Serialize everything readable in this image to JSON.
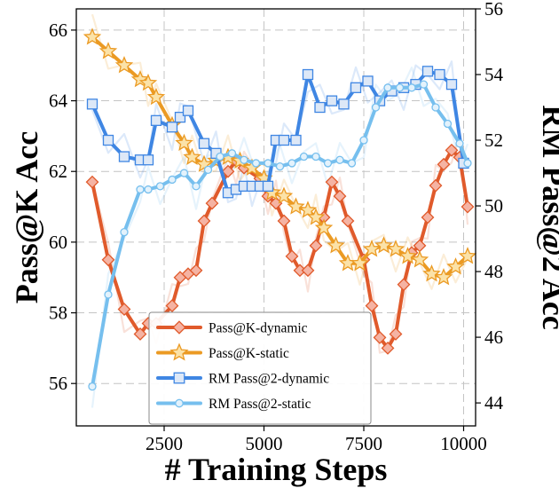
{
  "chart_data": {
    "type": "line",
    "xlabel": "# Training Steps",
    "ylabel_left": "Pass@K Acc",
    "ylabel_right": "RM Pass@2 Acc",
    "xlim": [
      300,
      10300
    ],
    "ylim_left": [
      54.8,
      66.6
    ],
    "ylim_right": [
      43.3,
      56.0
    ],
    "x_ticks": [
      2500,
      5000,
      7500,
      10000
    ],
    "y_ticks_left": [
      56,
      58,
      60,
      62,
      64,
      66
    ],
    "y_ticks_right": [
      44,
      46,
      48,
      50,
      52,
      54,
      56
    ],
    "grid": true,
    "legend_position": "lower-center",
    "series": [
      {
        "name": "Pass@K-dynamic",
        "axis": "left",
        "color": "#e05a2b",
        "marker": "diamond",
        "marker_fill": "#f5b3a3",
        "x": [
          700,
          1100,
          1500,
          1900,
          2100,
          2300,
          2700,
          2900,
          3100,
          3300,
          3500,
          3700,
          4100,
          4300,
          4500,
          4900,
          5100,
          5300,
          5500,
          5700,
          5900,
          6100,
          6300,
          6500,
          6700,
          6900,
          7100,
          7500,
          7700,
          7900,
          8100,
          8300,
          8500,
          8700,
          8900,
          9100,
          9300,
          9500,
          9700,
          9900,
          10100
        ],
        "values": [
          61.7,
          59.5,
          58.1,
          57.4,
          57.7,
          57.7,
          58.2,
          59.0,
          59.1,
          59.2,
          60.6,
          61.1,
          62.0,
          62.3,
          62.1,
          61.8,
          61.3,
          61.1,
          60.6,
          59.6,
          59.2,
          59.2,
          59.9,
          60.7,
          61.7,
          61.3,
          60.6,
          59.5,
          58.2,
          57.3,
          57.0,
          57.4,
          58.8,
          59.7,
          59.9,
          60.7,
          61.6,
          62.2,
          62.6,
          62.4,
          61.0
        ]
      },
      {
        "name": "Pass@K-static",
        "axis": "left",
        "color": "#eb9a23",
        "marker": "star",
        "marker_fill": "#fbe2a8",
        "x": [
          700,
          1100,
          1500,
          1900,
          2100,
          2300,
          2700,
          3000,
          3200,
          3500,
          3800,
          4100,
          4400,
          4700,
          5000,
          5200,
          5500,
          5800,
          6100,
          6300,
          6500,
          6800,
          7100,
          7400,
          7700,
          8000,
          8300,
          8600,
          8900,
          9200,
          9500,
          9800,
          10100
        ],
        "values": [
          65.8,
          65.4,
          65.0,
          64.6,
          64.5,
          64.1,
          63.3,
          62.8,
          62.4,
          62.2,
          62.3,
          62.4,
          62.3,
          62.1,
          61.8,
          61.4,
          61.3,
          61.0,
          60.9,
          60.7,
          60.4,
          59.9,
          59.4,
          59.4,
          59.8,
          59.9,
          59.8,
          59.6,
          59.5,
          59.1,
          59.0,
          59.3,
          59.6
        ]
      },
      {
        "name": "RM Pass@2-dynamic",
        "axis": "right",
        "color": "#3f86e3",
        "marker": "square",
        "marker_fill": "#dde8f7",
        "x": [
          700,
          1100,
          1500,
          1900,
          2100,
          2300,
          2700,
          2900,
          3100,
          3500,
          3800,
          4100,
          4300,
          4500,
          4700,
          4900,
          5100,
          5300,
          5500,
          5800,
          6100,
          6400,
          6700,
          7000,
          7300,
          7600,
          7900,
          8200,
          8500,
          8800,
          9100,
          9400,
          9700,
          10000
        ],
        "values": [
          53.1,
          52.0,
          51.5,
          51.4,
          51.4,
          52.6,
          52.4,
          52.7,
          52.9,
          51.9,
          51.6,
          50.4,
          50.5,
          50.6,
          50.6,
          50.6,
          50.6,
          52.0,
          52.0,
          52.0,
          54.0,
          53.0,
          53.2,
          53.1,
          53.6,
          53.8,
          53.2,
          53.5,
          53.6,
          53.7,
          54.1,
          54.0,
          53.7,
          51.3
        ]
      },
      {
        "name": "RM Pass@2-static",
        "axis": "right",
        "color": "#76bfee",
        "marker": "circle",
        "marker_fill": "#e3f2fc",
        "x": [
          700,
          1100,
          1500,
          1900,
          2100,
          2400,
          2700,
          3000,
          3300,
          3600,
          3900,
          4200,
          4500,
          4800,
          5100,
          5400,
          5700,
          6000,
          6300,
          6600,
          6900,
          7200,
          7500,
          7800,
          8100,
          8400,
          8700,
          9000,
          9300,
          9600,
          9900,
          10100
        ],
        "values": [
          44.5,
          47.3,
          49.2,
          50.5,
          50.5,
          50.6,
          50.8,
          51.0,
          50.6,
          51.1,
          51.5,
          51.6,
          51.4,
          51.3,
          51.3,
          51.2,
          51.3,
          51.5,
          51.5,
          51.3,
          51.4,
          51.3,
          52.0,
          53.0,
          53.6,
          53.6,
          53.6,
          53.7,
          53.0,
          52.5,
          51.9,
          51.3
        ]
      }
    ]
  }
}
